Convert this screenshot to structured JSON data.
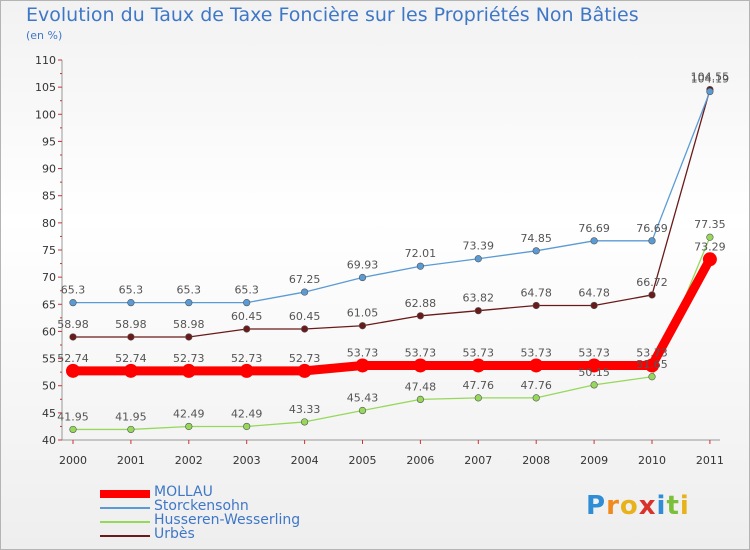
{
  "title": "Evolution du Taux de Taxe Foncière sur les Propriétés Non Bâties",
  "unit_label": "(en %)",
  "logo": {
    "letters": [
      "P",
      "r",
      "o",
      "x",
      "i",
      "t",
      "i"
    ],
    "colors": [
      "#2f8dd6",
      "#f08a1c",
      "#e8b21a",
      "#d9322b",
      "#2f8dd6",
      "#7cbf3a",
      "#e8b21a"
    ]
  },
  "colors": {
    "MOLLAU": "#ff0000",
    "Storckensohn": "#5b9bd5",
    "Husseren-Wesserling": "#96d85a",
    "Urbès": "#6b1a1a"
  },
  "chart_data": {
    "type": "line",
    "title": "Evolution du Taux de Taxe Foncière sur les Propriétés Non Bâties",
    "ylabel": "(en %)",
    "xlabel": "",
    "ylim": [
      40,
      110
    ],
    "yticks": [
      40,
      45,
      50,
      55,
      60,
      65,
      70,
      75,
      80,
      85,
      90,
      95,
      100,
      105,
      110
    ],
    "grid": false,
    "legend_position": "bottom-left",
    "categories": [
      "2000",
      "2001",
      "2002",
      "2003",
      "2004",
      "2005",
      "2006",
      "2007",
      "2008",
      "2009",
      "2010",
      "2011"
    ],
    "series": [
      {
        "name": "Urbès",
        "values": [
          58.98,
          58.98,
          58.98,
          60.45,
          60.45,
          61.05,
          62.88,
          63.82,
          64.78,
          64.78,
          66.72,
          104.55
        ],
        "labels": [
          "58.98",
          "58.98",
          "58.98",
          "60.45",
          "60.45",
          "61.05",
          "62.88",
          "63.82",
          "64.78",
          "64.78",
          "66.72",
          "104.55"
        ]
      },
      {
        "name": "Storckensohn",
        "values": [
          65.3,
          65.3,
          65.3,
          65.3,
          67.25,
          69.93,
          72.01,
          73.39,
          74.85,
          76.69,
          76.69,
          104.19
        ],
        "labels": [
          "65.3",
          "65.3",
          "65.3",
          "65.3",
          "67.25",
          "69.93",
          "72.01",
          "73.39",
          "74.85",
          "76.69",
          "76.69",
          "104.19"
        ]
      },
      {
        "name": "Husseren-Wesserling",
        "values": [
          41.95,
          41.95,
          42.49,
          42.49,
          43.33,
          45.43,
          47.48,
          47.76,
          47.76,
          50.15,
          51.65,
          77.35
        ],
        "labels": [
          "41.95",
          "41.95",
          "42.49",
          "42.49",
          "43.33",
          "45.43",
          "47.48",
          "47.76",
          "47.76",
          "50.15",
          "51.65",
          "77.35"
        ]
      },
      {
        "name": "MOLLAU",
        "values": [
          52.74,
          52.74,
          52.73,
          52.73,
          52.73,
          53.73,
          53.73,
          53.73,
          53.73,
          53.73,
          53.73,
          73.29
        ],
        "labels": [
          "52.74",
          "52.74",
          "52.73",
          "52.73",
          "52.73",
          "53.73",
          "53.73",
          "53.73",
          "53.73",
          "53.73",
          "53.73",
          "73.29"
        ]
      }
    ],
    "legend": [
      "MOLLAU",
      "Storckensohn",
      "Husseren-Wesserling",
      "Urbès"
    ]
  }
}
